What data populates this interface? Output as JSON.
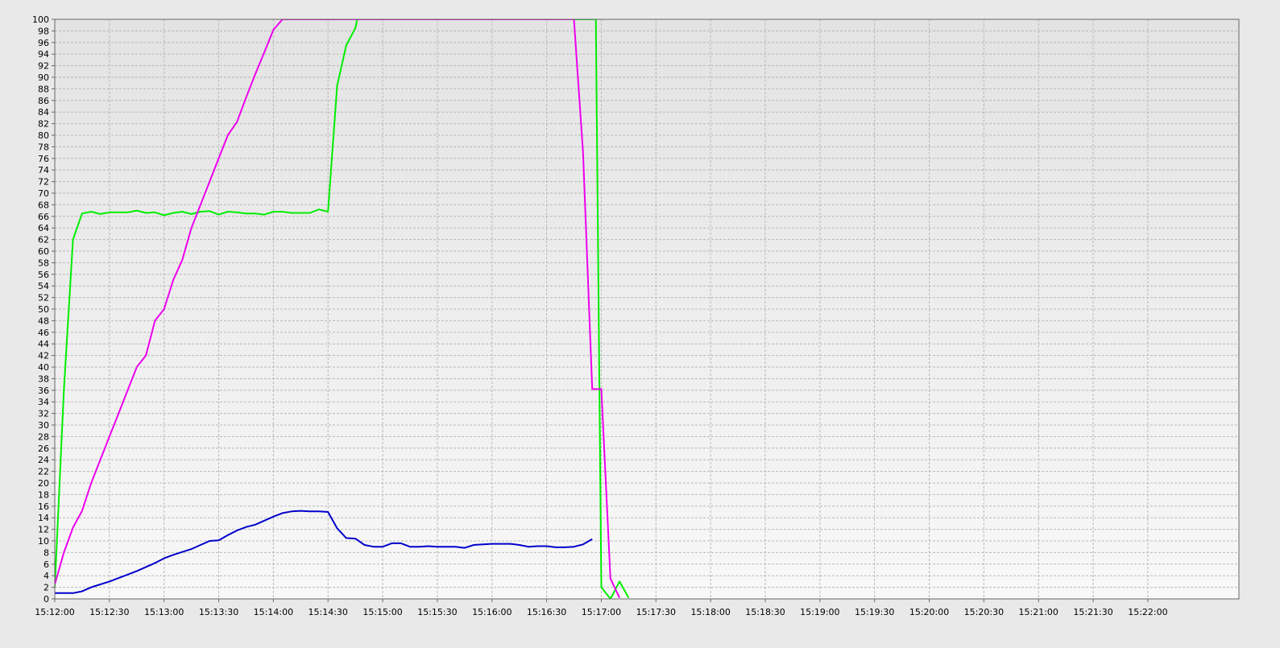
{
  "chart_data": {
    "type": "line",
    "title": "",
    "xlabel": "",
    "ylabel": "",
    "ylim": [
      0,
      100
    ],
    "y_ticks": [
      0,
      2,
      4,
      6,
      8,
      10,
      12,
      14,
      16,
      18,
      20,
      22,
      24,
      26,
      28,
      30,
      32,
      34,
      36,
      38,
      40,
      42,
      44,
      46,
      48,
      50,
      52,
      54,
      56,
      58,
      60,
      62,
      64,
      66,
      68,
      70,
      72,
      74,
      76,
      78,
      80,
      82,
      84,
      86,
      88,
      90,
      92,
      94,
      96,
      98,
      100
    ],
    "y_tick_labels": [
      "0",
      "2",
      "4",
      "6",
      "8",
      "10",
      "12",
      "14",
      "16",
      "18",
      "20",
      "22",
      "24",
      "26",
      "28",
      "30",
      "32",
      "34",
      "36",
      "38",
      "40",
      "42",
      "44",
      "46",
      "48",
      "50",
      "52",
      "54",
      "56",
      "58",
      "60",
      "62",
      "64",
      "66",
      "68",
      "70",
      "72",
      "74",
      "76",
      "78",
      "80",
      "82",
      "84",
      "86",
      "88",
      "90",
      "92",
      "94",
      "96",
      "98",
      "100"
    ],
    "x_range": [
      "15:12:00",
      "15:22:50"
    ],
    "x_tick_labels": [
      "15:12:00",
      "15:12:30",
      "15:13:00",
      "15:13:30",
      "15:14:00",
      "15:14:30",
      "15:15:00",
      "15:15:30",
      "15:16:00",
      "15:16:30",
      "15:17:00",
      "15:17:30",
      "15:18:00",
      "15:18:30",
      "15:19:00",
      "15:19:30",
      "15:20:00",
      "15:20:30",
      "15:21:00",
      "15:21:30",
      "15:22:00"
    ],
    "grid": true,
    "legend": "none",
    "series": [
      {
        "color": "#00ee00",
        "points": [
          [
            "15:12:00",
            2
          ],
          [
            "15:12:05",
            36
          ],
          [
            "15:12:10",
            62
          ],
          [
            "15:12:15",
            66.5
          ],
          [
            "15:12:20",
            66.8
          ],
          [
            "15:12:25",
            66.4
          ],
          [
            "15:12:30",
            66.7
          ],
          [
            "15:12:35",
            66.7
          ],
          [
            "15:12:40",
            66.7
          ],
          [
            "15:12:45",
            67
          ],
          [
            "15:12:50",
            66.6
          ],
          [
            "15:12:55",
            66.7
          ],
          [
            "15:13:00",
            66.2
          ],
          [
            "15:13:05",
            66.6
          ],
          [
            "15:13:10",
            66.8
          ],
          [
            "15:13:15",
            66.4
          ],
          [
            "15:13:20",
            66.8
          ],
          [
            "15:13:25",
            66.9
          ],
          [
            "15:13:30",
            66.3
          ],
          [
            "15:13:35",
            66.8
          ],
          [
            "15:13:40",
            66.7
          ],
          [
            "15:13:45",
            66.5
          ],
          [
            "15:13:50",
            66.5
          ],
          [
            "15:13:55",
            66.3
          ],
          [
            "15:14:00",
            66.8
          ],
          [
            "15:14:05",
            66.8
          ],
          [
            "15:14:10",
            66.6
          ],
          [
            "15:14:15",
            66.6
          ],
          [
            "15:14:20",
            66.6
          ],
          [
            "15:14:25",
            67.2
          ],
          [
            "15:14:30",
            66.8
          ],
          [
            "15:14:35",
            88.5
          ],
          [
            "15:14:40",
            95.5
          ],
          [
            "15:14:45",
            98.5
          ],
          [
            "15:14:46",
            100
          ],
          [
            "15:16:55",
            100
          ],
          [
            "15:16:57",
            100
          ],
          [
            "15:17:00",
            2
          ],
          [
            "15:17:05",
            0
          ],
          [
            "15:17:10",
            3
          ],
          [
            "15:17:15",
            0.2
          ]
        ]
      },
      {
        "color": "#ee00ee",
        "points": [
          [
            "15:12:00",
            2.5
          ],
          [
            "15:12:05",
            8
          ],
          [
            "15:12:10",
            12.3
          ],
          [
            "15:12:15",
            15.2
          ],
          [
            "15:12:20",
            20
          ],
          [
            "15:12:25",
            24
          ],
          [
            "15:12:30",
            28
          ],
          [
            "15:12:35",
            32
          ],
          [
            "15:12:40",
            36
          ],
          [
            "15:12:45",
            40
          ],
          [
            "15:12:50",
            42
          ],
          [
            "15:12:55",
            48
          ],
          [
            "15:13:00",
            50
          ],
          [
            "15:13:05",
            55
          ],
          [
            "15:13:10",
            58.5
          ],
          [
            "15:13:15",
            64
          ],
          [
            "15:13:20",
            68
          ],
          [
            "15:13:25",
            72
          ],
          [
            "15:13:30",
            76
          ],
          [
            "15:13:35",
            80
          ],
          [
            "15:13:40",
            82.3
          ],
          [
            "15:13:45",
            86.5
          ],
          [
            "15:13:50",
            90.5
          ],
          [
            "15:13:55",
            94.3
          ],
          [
            "15:14:00",
            98.2
          ],
          [
            "15:14:05",
            100
          ],
          [
            "15:16:45",
            100
          ],
          [
            "15:16:50",
            77
          ],
          [
            "15:16:55",
            36.2
          ],
          [
            "15:17:00",
            36.2
          ],
          [
            "15:17:05",
            3.5
          ],
          [
            "15:17:10",
            0.2
          ]
        ]
      },
      {
        "color": "#0000cc",
        "points": [
          [
            "15:12:00",
            1
          ],
          [
            "15:12:05",
            1
          ],
          [
            "15:12:10",
            1
          ],
          [
            "15:12:15",
            1.3
          ],
          [
            "15:12:20",
            2
          ],
          [
            "15:12:25",
            2.5
          ],
          [
            "15:12:30",
            3
          ],
          [
            "15:12:35",
            3.6
          ],
          [
            "15:12:40",
            4.2
          ],
          [
            "15:12:45",
            4.8
          ],
          [
            "15:12:50",
            5.5
          ],
          [
            "15:12:55",
            6.2
          ],
          [
            "15:13:00",
            7
          ],
          [
            "15:13:05",
            7.6
          ],
          [
            "15:13:10",
            8.1
          ],
          [
            "15:13:15",
            8.6
          ],
          [
            "15:13:20",
            9.3
          ],
          [
            "15:13:25",
            10
          ],
          [
            "15:13:30",
            10.1
          ],
          [
            "15:13:35",
            11
          ],
          [
            "15:13:40",
            11.8
          ],
          [
            "15:13:45",
            12.4
          ],
          [
            "15:13:50",
            12.8
          ],
          [
            "15:13:55",
            13.5
          ],
          [
            "15:14:00",
            14.2
          ],
          [
            "15:14:05",
            14.8
          ],
          [
            "15:14:10",
            15.1
          ],
          [
            "15:14:15",
            15.2
          ],
          [
            "15:14:20",
            15.1
          ],
          [
            "15:14:25",
            15.1
          ],
          [
            "15:14:30",
            15
          ],
          [
            "15:14:35",
            12.2
          ],
          [
            "15:14:40",
            10.5
          ],
          [
            "15:14:45",
            10.4
          ],
          [
            "15:14:50",
            9.3
          ],
          [
            "15:14:55",
            9
          ],
          [
            "15:15:00",
            9
          ],
          [
            "15:15:05",
            9.6
          ],
          [
            "15:15:10",
            9.6
          ],
          [
            "15:15:15",
            9
          ],
          [
            "15:15:20",
            9
          ],
          [
            "15:15:25",
            9.1
          ],
          [
            "15:15:30",
            9
          ],
          [
            "15:15:35",
            9
          ],
          [
            "15:15:40",
            9
          ],
          [
            "15:15:45",
            8.8
          ],
          [
            "15:15:50",
            9.3
          ],
          [
            "15:15:55",
            9.4
          ],
          [
            "15:16:00",
            9.5
          ],
          [
            "15:16:05",
            9.5
          ],
          [
            "15:16:10",
            9.5
          ],
          [
            "15:16:15",
            9.3
          ],
          [
            "15:16:20",
            9
          ],
          [
            "15:16:25",
            9.1
          ],
          [
            "15:16:30",
            9.1
          ],
          [
            "15:16:35",
            8.9
          ],
          [
            "15:16:40",
            8.9
          ],
          [
            "15:16:45",
            9
          ],
          [
            "15:16:50",
            9.4
          ],
          [
            "15:16:55",
            10.3
          ]
        ]
      }
    ]
  }
}
